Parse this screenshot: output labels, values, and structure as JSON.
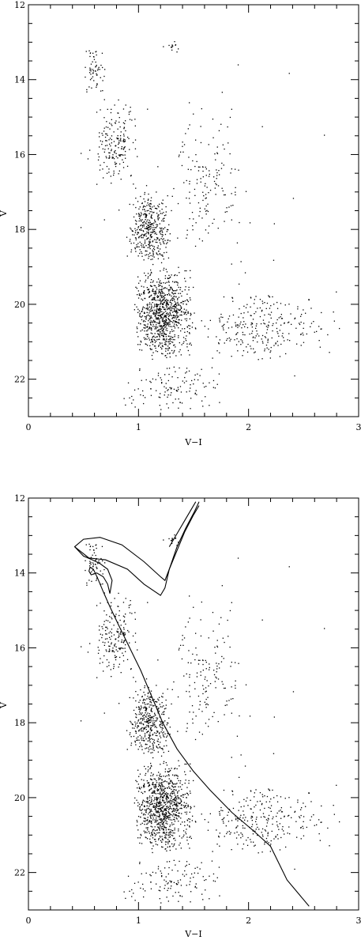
{
  "chart_data": [
    {
      "type": "scatter",
      "xlabel": "V−I",
      "ylabel": "V",
      "xlim": [
        0,
        3
      ],
      "ylim": [
        23,
        12
      ],
      "y_inverted": true,
      "x_ticks": [
        "0",
        "1",
        "2",
        "3"
      ],
      "y_ticks": [
        "12",
        "14",
        "16",
        "18",
        "20",
        "22"
      ],
      "marker_color": "#000000",
      "series": [
        {
          "kind": "points",
          "density_description_regions": [
            {
              "x_range": [
                0.5,
                0.7
              ],
              "y_range": [
                13.0,
                14.5
              ],
              "weight": 60
            },
            {
              "x_range": [
                0.6,
                1.0
              ],
              "y_range": [
                14.5,
                17.0
              ],
              "weight": 180
            },
            {
              "x_range": [
                0.9,
                1.3
              ],
              "y_range": [
                17.0,
                19.0
              ],
              "weight": 380
            },
            {
              "x_range": [
                0.95,
                1.5
              ],
              "y_range": [
                19.0,
                21.5
              ],
              "weight": 900
            },
            {
              "x_range": [
                1.4,
                2.9
              ],
              "y_range": [
                19.6,
                21.6
              ],
              "weight": 260
            },
            {
              "x_range": [
                1.2,
                2.0
              ],
              "y_range": [
                14.5,
                19.0
              ],
              "weight": 140
            },
            {
              "x_range": [
                1.2,
                1.4
              ],
              "y_range": [
                12.9,
                13.3
              ],
              "weight": 14
            },
            {
              "x_range": [
                0.8,
                1.8
              ],
              "y_range": [
                21.5,
                22.9
              ],
              "weight": 120
            },
            {
              "x_range": [
                0.1,
                2.8
              ],
              "y_range": [
                12.5,
                22.5
              ],
              "weight": 60
            }
          ]
        }
      ]
    },
    {
      "type": "scatter",
      "xlabel": "V−I",
      "ylabel": "V",
      "xlim": [
        0,
        3
      ],
      "ylim": [
        23,
        12
      ],
      "y_inverted": true,
      "x_ticks": [
        "0",
        "1",
        "2",
        "3"
      ],
      "y_ticks": [
        "12",
        "14",
        "16",
        "18",
        "20",
        "22"
      ],
      "marker_color": "#000000",
      "series": [
        {
          "kind": "points",
          "same_as_panel": 0
        },
        {
          "kind": "line",
          "label_hint": "isochrone",
          "x": [
            2.55,
            2.35,
            2.2,
            2.05,
            1.85,
            1.65,
            1.5,
            1.35,
            1.22,
            1.12,
            1.02,
            0.92,
            0.82,
            0.74,
            0.68,
            0.63,
            0.59,
            0.56,
            0.55,
            0.57,
            0.62,
            0.68,
            0.72,
            0.74,
            0.76,
            0.72,
            0.65,
            0.58,
            0.5,
            0.42,
            0.5,
            0.65,
            0.85,
            1.05,
            1.2,
            1.24,
            1.28,
            1.35,
            1.42,
            1.5,
            1.55
          ],
          "y": [
            22.9,
            22.2,
            21.3,
            20.9,
            20.4,
            19.8,
            19.3,
            18.7,
            18.0,
            17.3,
            16.6,
            16.0,
            15.4,
            14.9,
            14.5,
            14.15,
            13.9,
            13.85,
            13.95,
            14.05,
            14.0,
            14.1,
            14.3,
            14.55,
            14.2,
            13.9,
            13.75,
            13.65,
            13.55,
            13.3,
            13.1,
            13.05,
            13.25,
            13.7,
            14.1,
            14.2,
            13.9,
            13.4,
            12.9,
            12.45,
            12.2
          ]
        },
        {
          "kind": "line",
          "label_hint": "isochrone",
          "x": [
            0.42,
            0.55,
            0.7,
            0.9,
            1.05,
            1.2,
            1.24,
            1.28,
            1.35,
            1.43,
            1.51,
            1.55
          ],
          "y": [
            13.3,
            13.6,
            13.65,
            13.9,
            14.3,
            14.6,
            14.4,
            13.9,
            13.3,
            12.8,
            12.35,
            12.1
          ]
        },
        {
          "kind": "line",
          "label_hint": "isochrone",
          "x": [
            1.28,
            1.36,
            1.44,
            1.52
          ],
          "y": [
            13.3,
            12.9,
            12.5,
            12.1
          ]
        }
      ]
    }
  ]
}
